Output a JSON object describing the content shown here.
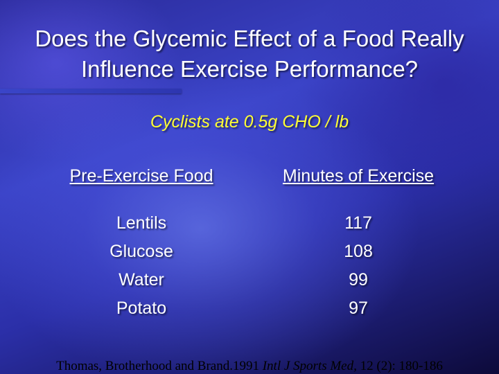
{
  "slide": {
    "title_line1": "Does the Glycemic Effect of a Food Really",
    "title_line2": "Influence Exercise Performance?",
    "subtitle": "Cyclists ate 0.5g CHO / lb",
    "table": {
      "headers": [
        "Pre-Exercise Food",
        "Minutes of Exercise"
      ],
      "rows": [
        {
          "food": "Lentils",
          "minutes": "117"
        },
        {
          "food": "Glucose",
          "minutes": "108"
        },
        {
          "food": "Water",
          "minutes": "99"
        },
        {
          "food": "Potato",
          "minutes": "97"
        }
      ]
    },
    "citation": {
      "authors": "Thomas, Brotherhood and Brand.1991",
      "journal": "Intl J Sports Med,",
      "details": "12 (2): 180-186"
    }
  },
  "colors": {
    "title_text": "#ffffff",
    "subtitle_text": "#ffff33",
    "background_primary": "#3b44c8",
    "citation_text": "#000000"
  }
}
